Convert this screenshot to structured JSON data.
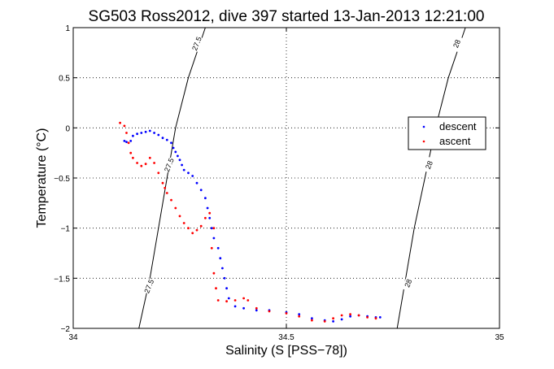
{
  "chart_data": {
    "type": "scatter",
    "title": "SG503 Ross2012, dive 397 started 13-Jan-2013 12:21:00",
    "xlabel": "Salinity (S [PSS−78])",
    "ylabel": "Temperature (°C)",
    "xlim": [
      34,
      35
    ],
    "ylim": [
      -2,
      1
    ],
    "grid": true,
    "grid_style": "dotted",
    "legend_position": "right",
    "x_ticks": [
      {
        "value": 34,
        "label": "34"
      },
      {
        "value": 34.5,
        "label": "34.5"
      },
      {
        "value": 35,
        "label": "35"
      }
    ],
    "y_ticks": [
      {
        "value": 1,
        "label": "1"
      },
      {
        "value": 0.5,
        "label": "0.5"
      },
      {
        "value": 0,
        "label": "0"
      },
      {
        "value": -0.5,
        "label": "−0.5"
      },
      {
        "value": -1,
        "label": "−1"
      },
      {
        "value": -1.5,
        "label": "−1.5"
      },
      {
        "value": -2,
        "label": "−2"
      }
    ],
    "series": [
      {
        "name": "descent",
        "color": "#0000ff",
        "points": [
          [
            34.12,
            -0.13
          ],
          [
            34.125,
            -0.14
          ],
          [
            34.135,
            -0.13
          ],
          [
            34.14,
            -0.08
          ],
          [
            34.15,
            -0.06
          ],
          [
            34.16,
            -0.05
          ],
          [
            34.17,
            -0.04
          ],
          [
            34.18,
            -0.03
          ],
          [
            34.19,
            -0.05
          ],
          [
            34.2,
            -0.07
          ],
          [
            34.21,
            -0.1
          ],
          [
            34.22,
            -0.12
          ],
          [
            34.23,
            -0.15
          ],
          [
            34.235,
            -0.2
          ],
          [
            34.24,
            -0.24
          ],
          [
            34.245,
            -0.28
          ],
          [
            34.25,
            -0.32
          ],
          [
            34.255,
            -0.37
          ],
          [
            34.26,
            -0.42
          ],
          [
            34.27,
            -0.45
          ],
          [
            34.28,
            -0.48
          ],
          [
            34.29,
            -0.55
          ],
          [
            34.3,
            -0.62
          ],
          [
            34.31,
            -0.7
          ],
          [
            34.315,
            -0.8
          ],
          [
            34.32,
            -0.9
          ],
          [
            34.325,
            -1.0
          ],
          [
            34.33,
            -1.1
          ],
          [
            34.34,
            -1.2
          ],
          [
            34.345,
            -1.3
          ],
          [
            34.35,
            -1.4
          ],
          [
            34.355,
            -1.5
          ],
          [
            34.36,
            -1.6
          ],
          [
            34.365,
            -1.7
          ],
          [
            34.38,
            -1.78
          ],
          [
            34.4,
            -1.8
          ],
          [
            34.43,
            -1.82
          ],
          [
            34.46,
            -1.82
          ],
          [
            34.5,
            -1.84
          ],
          [
            34.53,
            -1.86
          ],
          [
            34.56,
            -1.9
          ],
          [
            34.59,
            -1.92
          ],
          [
            34.61,
            -1.93
          ],
          [
            34.63,
            -1.91
          ],
          [
            34.65,
            -1.88
          ],
          [
            34.67,
            -1.87
          ],
          [
            34.69,
            -1.88
          ],
          [
            34.71,
            -1.89
          ],
          [
            34.72,
            -1.89
          ]
        ]
      },
      {
        "name": "ascent",
        "color": "#ff0000",
        "points": [
          [
            34.11,
            0.05
          ],
          [
            34.12,
            0.02
          ],
          [
            34.125,
            -0.05
          ],
          [
            34.13,
            -0.15
          ],
          [
            34.135,
            -0.25
          ],
          [
            34.14,
            -0.3
          ],
          [
            34.15,
            -0.35
          ],
          [
            34.16,
            -0.38
          ],
          [
            34.17,
            -0.36
          ],
          [
            34.18,
            -0.3
          ],
          [
            34.19,
            -0.35
          ],
          [
            34.2,
            -0.45
          ],
          [
            34.21,
            -0.55
          ],
          [
            34.215,
            -0.6
          ],
          [
            34.22,
            -0.65
          ],
          [
            34.23,
            -0.72
          ],
          [
            34.24,
            -0.8
          ],
          [
            34.25,
            -0.88
          ],
          [
            34.26,
            -0.95
          ],
          [
            34.27,
            -1.0
          ],
          [
            34.28,
            -1.05
          ],
          [
            34.29,
            -1.02
          ],
          [
            34.3,
            -0.98
          ],
          [
            34.31,
            -0.9
          ],
          [
            34.32,
            -0.85
          ],
          [
            34.33,
            -1.0
          ],
          [
            34.325,
            -1.2
          ],
          [
            34.33,
            -1.45
          ],
          [
            34.335,
            -1.6
          ],
          [
            34.34,
            -1.72
          ],
          [
            34.36,
            -1.73
          ],
          [
            34.38,
            -1.72
          ],
          [
            34.4,
            -1.7
          ],
          [
            34.41,
            -1.72
          ],
          [
            34.43,
            -1.8
          ],
          [
            34.46,
            -1.83
          ],
          [
            34.5,
            -1.85
          ],
          [
            34.53,
            -1.88
          ],
          [
            34.56,
            -1.92
          ],
          [
            34.59,
            -1.93
          ],
          [
            34.61,
            -1.9
          ],
          [
            34.63,
            -1.87
          ],
          [
            34.65,
            -1.86
          ],
          [
            34.67,
            -1.87
          ],
          [
            34.69,
            -1.89
          ],
          [
            34.71,
            -1.9
          ]
        ]
      }
    ],
    "contours": [
      {
        "label": "27.5",
        "points": [
          [
            34.154,
            -2
          ],
          [
            34.18,
            -1.5
          ],
          [
            34.2,
            -1.0
          ],
          [
            34.22,
            -0.5
          ],
          [
            34.24,
            0.0
          ],
          [
            34.27,
            0.5
          ],
          [
            34.31,
            1.0
          ]
        ]
      },
      {
        "label": "28",
        "points": [
          [
            34.76,
            -2
          ],
          [
            34.78,
            -1.5
          ],
          [
            34.8,
            -1.0
          ],
          [
            34.825,
            -0.5
          ],
          [
            34.85,
            0.0
          ],
          [
            34.88,
            0.5
          ],
          [
            34.92,
            1.0
          ]
        ]
      }
    ],
    "contour_labels": [
      {
        "text": "27.5",
        "x": 34.29,
        "y": 0.84
      },
      {
        "text": "27.5",
        "x": 34.225,
        "y": -0.37
      },
      {
        "text": "27.5",
        "x": 34.178,
        "y": -1.58
      },
      {
        "text": "28",
        "x": 34.9,
        "y": 0.84
      },
      {
        "text": "28",
        "x": 34.835,
        "y": -0.37
      },
      {
        "text": "28",
        "x": 34.786,
        "y": -1.55
      }
    ]
  }
}
